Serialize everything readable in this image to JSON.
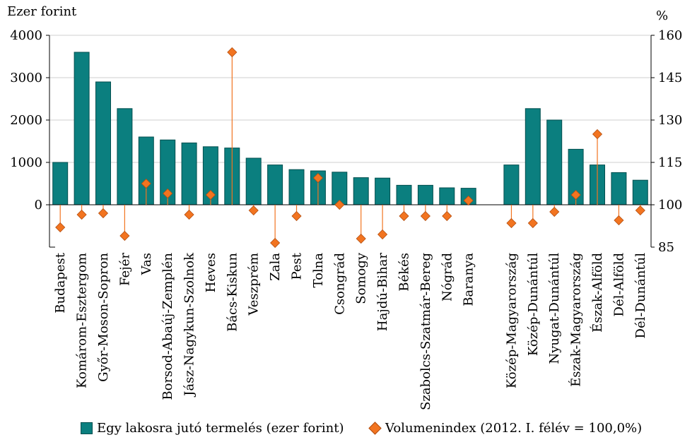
{
  "chart_data": {
    "type": "bar",
    "y_left_label": "Ezer forint",
    "y_right_label": "%",
    "y_left_lim": [
      -1000,
      4000
    ],
    "y_left_ticks": [
      "4000",
      "3000",
      "2000",
      "1000",
      "0"
    ],
    "y_right_lim": [
      85,
      160
    ],
    "y_right_ticks": [
      "160",
      "145",
      "130",
      "115",
      "100",
      "85"
    ],
    "categories": [
      "Budapest",
      "Komárom-Esztergom",
      "Győr-Moson-Sopron",
      "Fejér",
      "Vas",
      "Borsod-Abaúj-Zemplén",
      "Jász-Nagykun-Szolnok",
      "Heves",
      "Bács-Kiskun",
      "Veszprém",
      "Zala",
      "Pest",
      "Tolna",
      "Csongrád",
      "Somogy",
      "Hajdú-Bihar",
      "Békés",
      "Szabolcs-Szatmár-Bereg",
      "Nógrád",
      "Baranya",
      "",
      "Közép-Magyarország",
      "Közép-Dunántúl",
      "Nyugat-Dunántúl",
      "Észak-Magyarország",
      "Észak-Alföld",
      "Dél-Alföld",
      "Dél-Dunántúl"
    ],
    "series": [
      {
        "name": "Egy lakosra jutó termelés (ezer forint)",
        "type": "bar",
        "axis": "left",
        "color": "#0b7f7f",
        "values": [
          1000,
          3600,
          2900,
          2270,
          1600,
          1530,
          1460,
          1370,
          1340,
          1100,
          940,
          830,
          800,
          770,
          640,
          630,
          460,
          460,
          400,
          390,
          null,
          940,
          2270,
          2000,
          1310,
          940,
          760,
          580
        ]
      },
      {
        "name": "Volumenindex (2012. I. félév = 100,0%)",
        "type": "scatter",
        "axis": "right",
        "color": "#f27420",
        "values": [
          92,
          96.5,
          97,
          89,
          107.5,
          104,
          96.5,
          103.5,
          154,
          98,
          86.5,
          96,
          109.5,
          100,
          88,
          89.5,
          96,
          96,
          96,
          101.5,
          null,
          93.5,
          93.5,
          97.5,
          103.5,
          125,
          94.5,
          98
        ]
      }
    ],
    "grid": "horizontal",
    "legend_position": "bottom"
  }
}
